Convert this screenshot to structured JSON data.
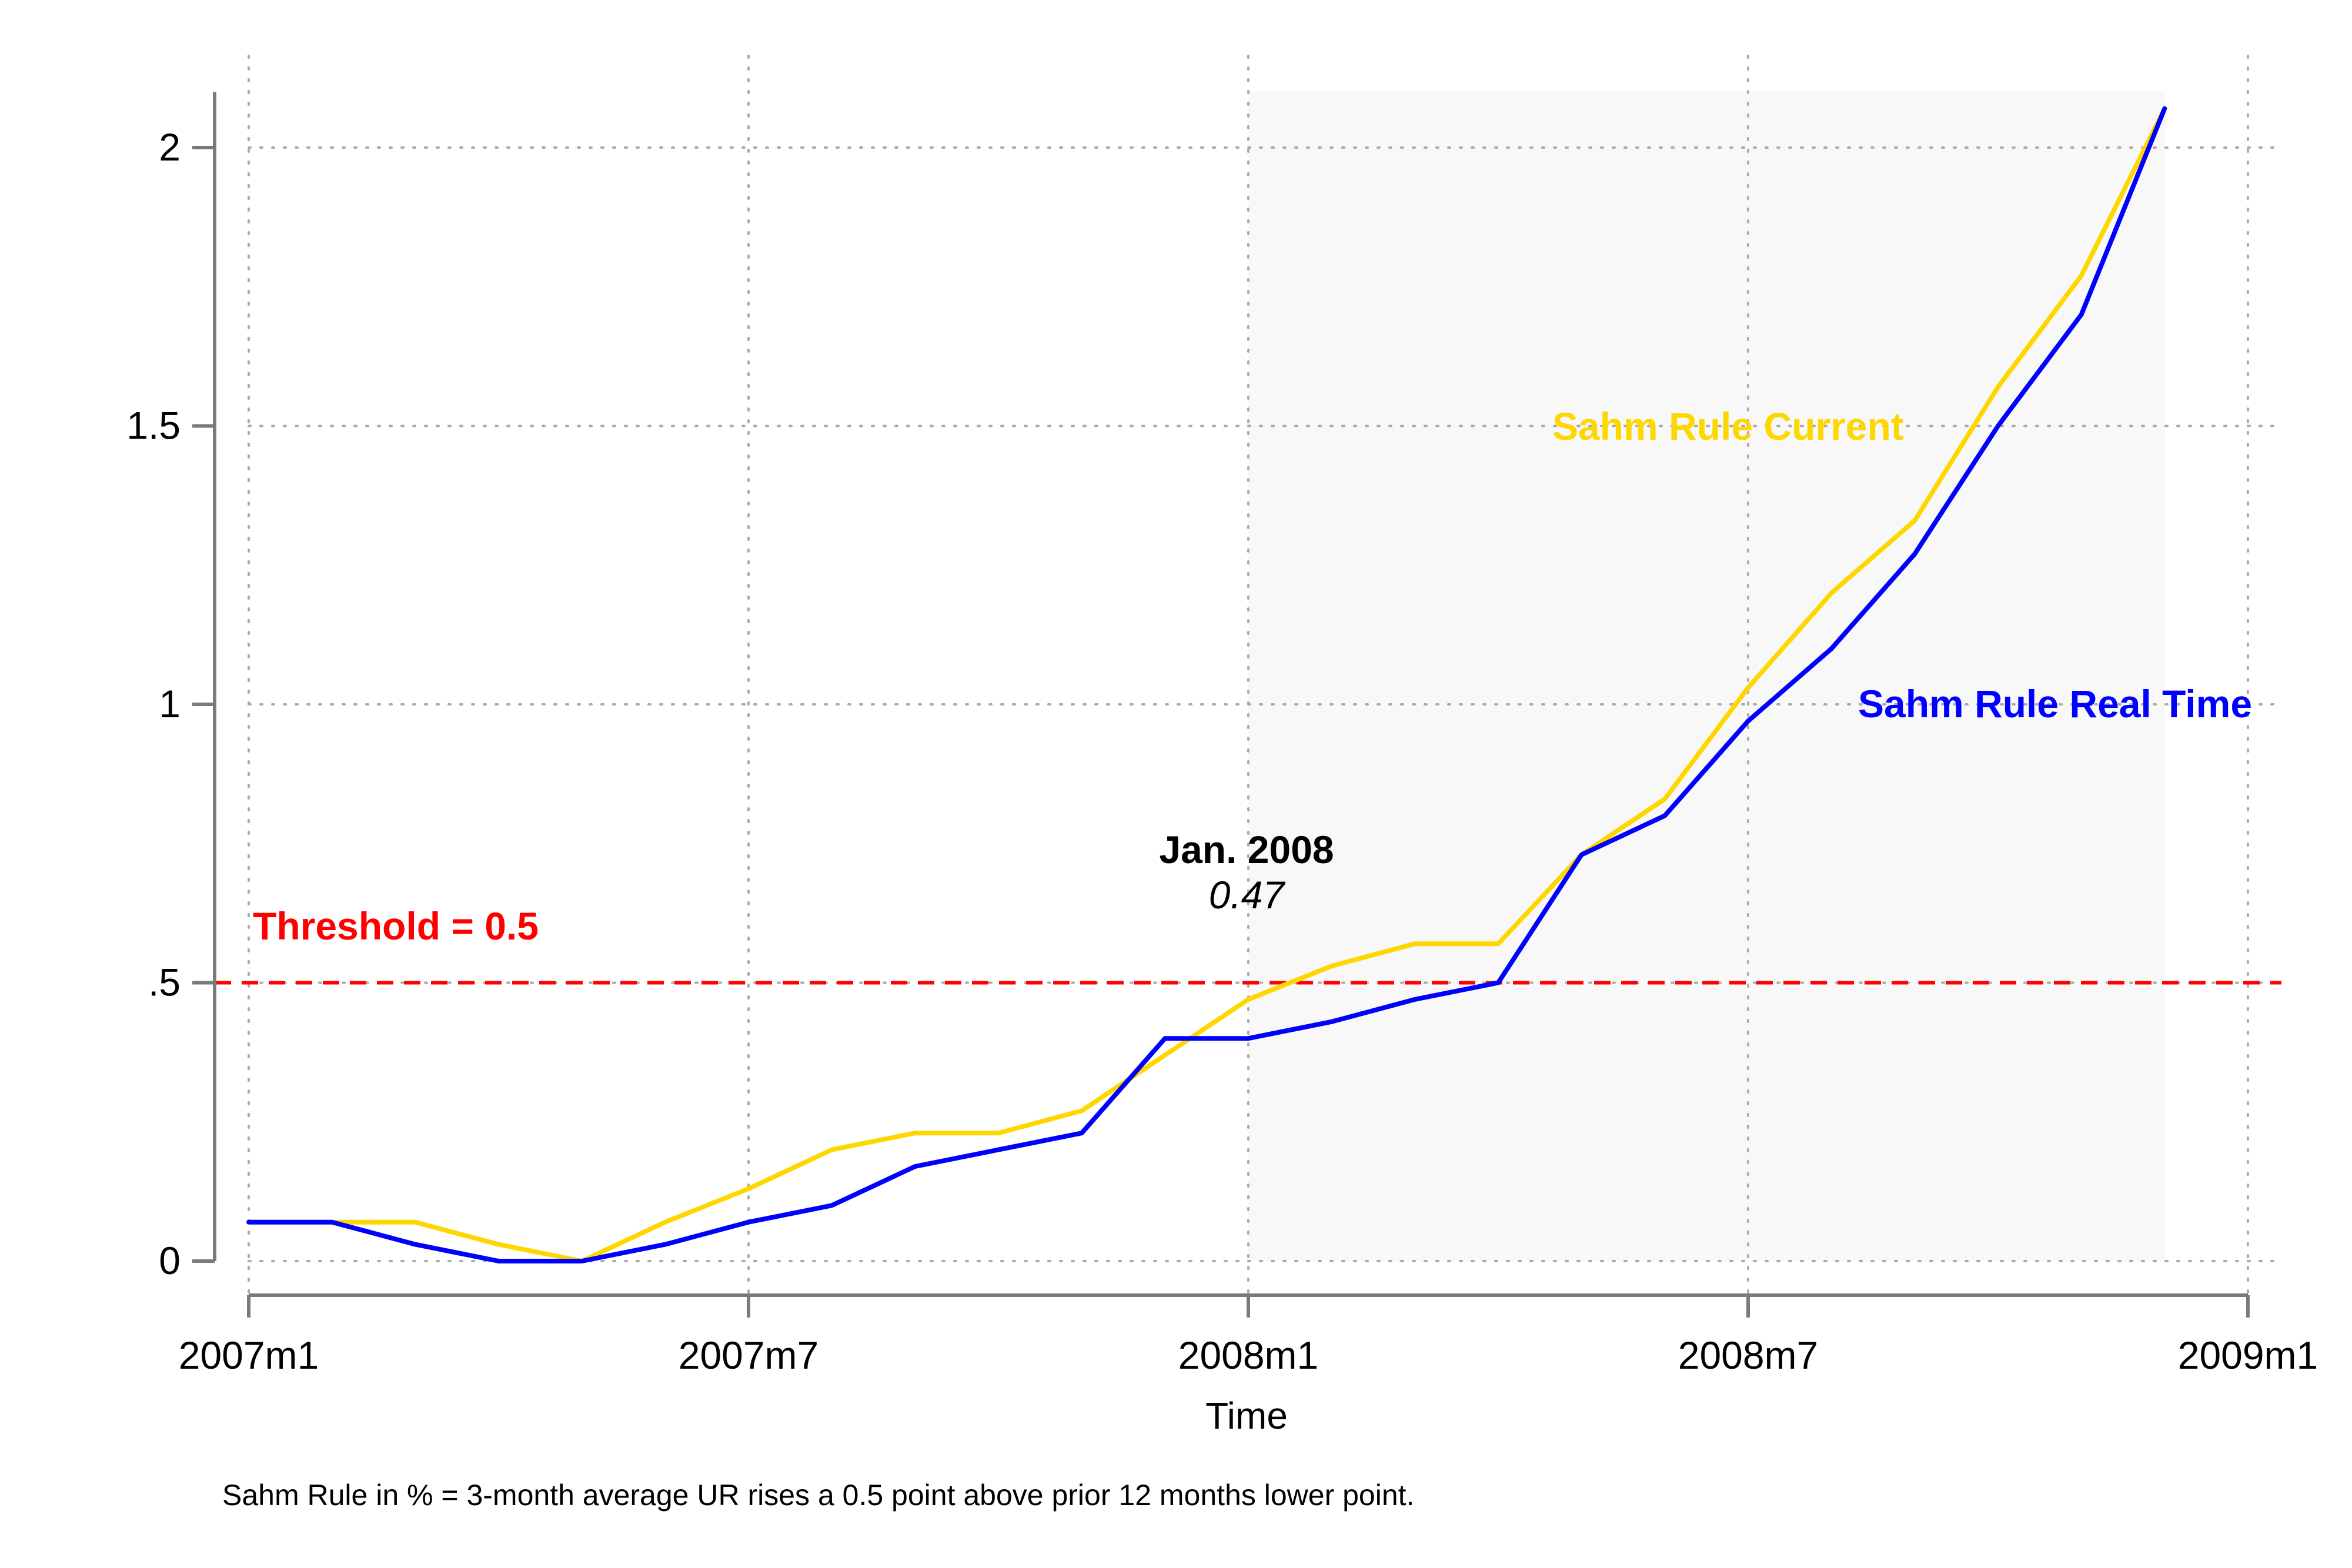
{
  "chart_data": {
    "type": "line",
    "title": "",
    "xlabel": "Time",
    "ylabel": "",
    "note": "Sahm Rule in % = 3-month average UR rises a 0.5 point above prior 12 months lower point.",
    "x": [
      "2007m1",
      "2007m2",
      "2007m3",
      "2007m4",
      "2007m5",
      "2007m6",
      "2007m7",
      "2007m8",
      "2007m9",
      "2007m10",
      "2007m11",
      "2007m12",
      "2008m1",
      "2008m2",
      "2008m3",
      "2008m4",
      "2008m5",
      "2008m6",
      "2008m7",
      "2008m8",
      "2008m9",
      "2008m10",
      "2008m11",
      "2008m12"
    ],
    "xlim": [
      "2007m1",
      "2009m1"
    ],
    "ylim": [
      -0.06,
      2.1
    ],
    "x_ticks": [
      "2007m1",
      "2007m7",
      "2008m1",
      "2008m7",
      "2009m1"
    ],
    "y_ticks": [
      {
        "value": 0,
        "label": "0"
      },
      {
        "value": 0.5,
        "label": ".5"
      },
      {
        "value": 1,
        "label": "1"
      },
      {
        "value": 1.5,
        "label": "1.5"
      },
      {
        "value": 2,
        "label": "2"
      }
    ],
    "grid": true,
    "series": [
      {
        "name": "Sahm Rule Current",
        "color": "#FFD700",
        "values": [
          0.07,
          0.07,
          0.07,
          0.03,
          0.0,
          0.07,
          0.13,
          0.2,
          0.23,
          0.23,
          0.27,
          0.37,
          0.47,
          0.53,
          0.57,
          0.57,
          0.73,
          0.83,
          1.03,
          1.2,
          1.33,
          1.57,
          1.77,
          2.07
        ]
      },
      {
        "name": "Sahm Rule Real Time",
        "color": "#0000FF",
        "values": [
          0.07,
          0.07,
          0.03,
          0.0,
          0.0,
          0.03,
          0.07,
          0.1,
          0.17,
          0.2,
          0.23,
          0.4,
          0.4,
          0.43,
          0.47,
          0.5,
          0.73,
          0.8,
          0.97,
          1.1,
          1.27,
          1.5,
          1.7,
          2.07
        ]
      }
    ],
    "recession_shading": {
      "start": "2008m1",
      "end": "2008m12",
      "color": "#F8F8F8"
    },
    "threshold": {
      "value": 0.5,
      "label": "Threshold = 0.5",
      "color": "#FF0000"
    },
    "annotation": {
      "x": "2008m1",
      "title": "Jan. 2008",
      "value_label": "0.47"
    }
  }
}
